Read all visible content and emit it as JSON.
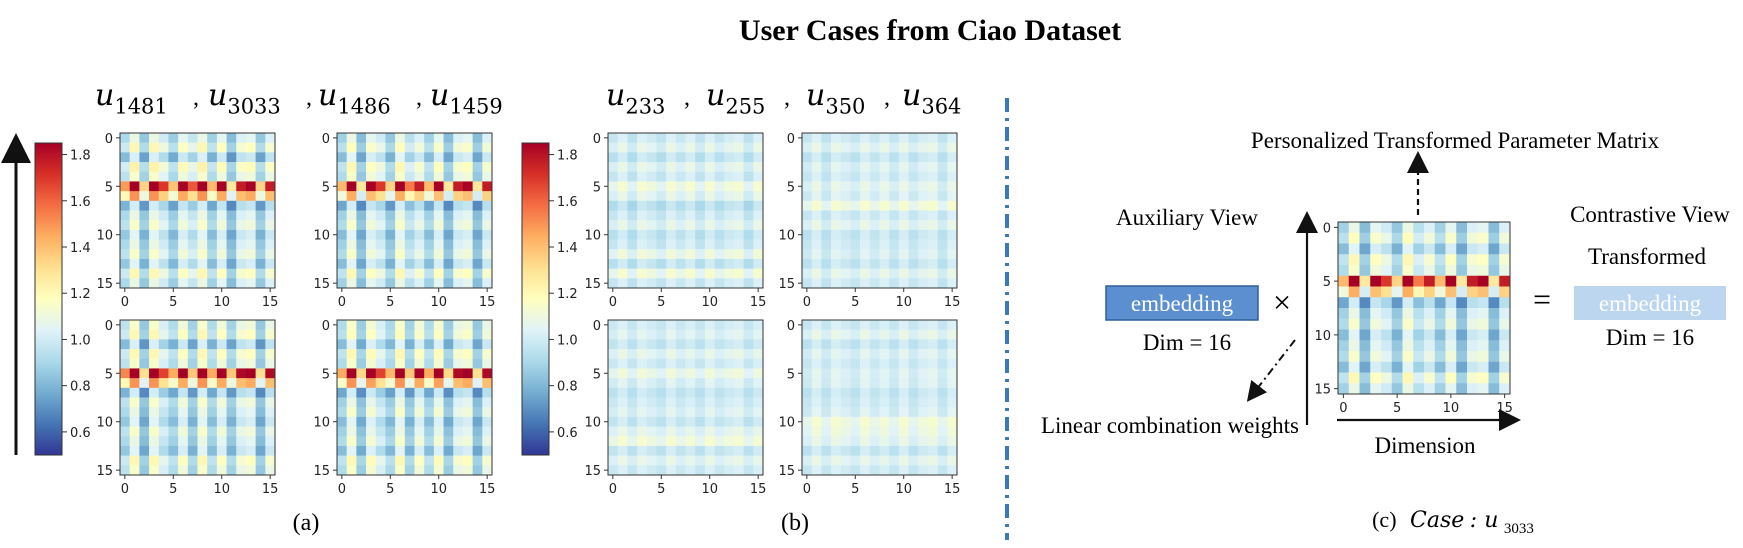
{
  "figure": {
    "title": "User Cases from Ciao Dataset",
    "panel_a": {
      "users": [
        "u_1481",
        "u_3033",
        "u_1486",
        "u_1459"
      ],
      "caption": "(a)"
    },
    "panel_b": {
      "users": [
        "u_233",
        "u_255",
        "u_350",
        "u_364"
      ],
      "caption": "(b)"
    },
    "panel_c": {
      "top_label": "Personalized Transformed Parameter Matrix",
      "auxiliary_view": "Auxiliary View",
      "embedding_left": "embedding",
      "dim_left": "Dim = 16",
      "times": "×",
      "equals": "=",
      "contrastive_view": "Contrastive View",
      "transformed": "Transformed",
      "embedding_right": "embedding",
      "dim_right": "Dim = 16",
      "linear_weights": "Linear combination weights",
      "dimension": "Dimension",
      "caption_prefix": "(c)",
      "caption_case": "Case",
      "caption_user": "u_3033"
    },
    "colors": {
      "embedding_strong": "#5b8fd0",
      "embedding_light": "#bcd6f0",
      "divider": "#3a78b8"
    },
    "colorbar_ticks": [
      "1.8",
      "1.6",
      "1.4",
      "1.2",
      "1.0",
      "0.8",
      "0.6"
    ]
  },
  "chart_data": [
    {
      "type": "heatmap",
      "panel": "a",
      "user": "u_1481",
      "rows": 16,
      "cols": 16,
      "x_ticks": [
        0,
        5,
        10,
        15
      ],
      "y_ticks": [
        0,
        5,
        10,
        15
      ],
      "color_range": [
        0.5,
        1.85
      ],
      "colormap": "RdYlBu_r",
      "row_profile": [
        1.0,
        1.1,
        0.92,
        1.12,
        1.05,
        1.7,
        1.35,
        0.9,
        1.0,
        1.05,
        0.95,
        1.0,
        1.05,
        0.95,
        1.1,
        1.0
      ],
      "col_profile": [
        0.85,
        1.15,
        0.75,
        1.15,
        1.0,
        0.78,
        1.1,
        0.95,
        1.15,
        0.8,
        1.1,
        0.7,
        1.05,
        1.1,
        0.75,
        1.05
      ]
    },
    {
      "type": "heatmap",
      "panel": "a",
      "user": "u_3033",
      "rows": 16,
      "cols": 16,
      "x_ticks": [
        0,
        5,
        10,
        15
      ],
      "y_ticks": [
        0,
        5,
        10,
        15
      ],
      "color_range": [
        0.5,
        1.85
      ],
      "colormap": "RdYlBu_r",
      "row_profile": [
        1.0,
        1.08,
        0.95,
        1.1,
        1.05,
        1.7,
        1.3,
        0.9,
        1.0,
        1.05,
        0.95,
        1.0,
        1.05,
        0.95,
        1.1,
        1.0
      ],
      "col_profile": [
        0.8,
        1.15,
        0.7,
        1.1,
        1.0,
        0.75,
        1.15,
        0.9,
        1.05,
        0.8,
        1.1,
        0.7,
        1.05,
        1.1,
        0.7,
        1.05
      ]
    },
    {
      "type": "heatmap",
      "panel": "a",
      "user": "u_1486",
      "rows": 16,
      "cols": 16,
      "x_ticks": [
        0,
        5,
        10,
        15
      ],
      "y_ticks": [
        0,
        5,
        10,
        15
      ],
      "color_range": [
        0.5,
        1.85
      ],
      "colormap": "RdYlBu_r",
      "row_profile": [
        1.05,
        1.1,
        0.92,
        1.1,
        1.05,
        1.75,
        1.35,
        0.9,
        1.05,
        1.0,
        0.95,
        1.05,
        1.0,
        0.95,
        1.1,
        1.05
      ],
      "col_profile": [
        0.85,
        1.15,
        0.7,
        1.15,
        0.95,
        0.8,
        1.1,
        0.75,
        1.15,
        0.8,
        1.1,
        0.75,
        1.05,
        1.1,
        0.7,
        1.05
      ]
    },
    {
      "type": "heatmap",
      "panel": "a",
      "user": "u_1459",
      "rows": 16,
      "cols": 16,
      "x_ticks": [
        0,
        5,
        10,
        15
      ],
      "y_ticks": [
        0,
        5,
        10,
        15
      ],
      "color_range": [
        0.5,
        1.85
      ],
      "colormap": "RdYlBu_r",
      "row_profile": [
        1.05,
        1.08,
        0.95,
        1.1,
        1.05,
        1.75,
        1.35,
        0.9,
        1.0,
        1.05,
        0.95,
        1.0,
        1.05,
        0.95,
        1.1,
        1.05
      ],
      "col_profile": [
        0.8,
        1.15,
        0.72,
        1.12,
        0.95,
        0.78,
        1.15,
        0.75,
        1.1,
        0.8,
        1.12,
        0.72,
        1.05,
        1.1,
        0.7,
        1.05
      ]
    },
    {
      "type": "heatmap",
      "panel": "b",
      "user": "u_233",
      "rows": 16,
      "cols": 16,
      "x_ticks": [
        0,
        5,
        10,
        15
      ],
      "y_ticks": [
        0,
        5,
        10,
        15
      ],
      "color_range": [
        0.5,
        1.85
      ],
      "colormap": "RdYlBu_r",
      "row_profile": [
        1.0,
        1.05,
        0.97,
        1.05,
        1.0,
        1.1,
        1.05,
        0.95,
        1.0,
        1.05,
        0.97,
        1.0,
        1.08,
        0.97,
        1.1,
        1.0
      ],
      "col_profile": [
        0.95,
        1.05,
        0.92,
        1.05,
        1.0,
        0.93,
        1.05,
        0.97,
        1.05,
        0.93,
        1.05,
        0.95,
        1.02,
        1.05,
        0.92,
        1.05
      ]
    },
    {
      "type": "heatmap",
      "panel": "b",
      "user": "u_255",
      "rows": 16,
      "cols": 16,
      "x_ticks": [
        0,
        5,
        10,
        15
      ],
      "y_ticks": [
        0,
        5,
        10,
        15
      ],
      "color_range": [
        0.5,
        1.85
      ],
      "colormap": "RdYlBu_r",
      "row_profile": [
        1.0,
        1.05,
        0.98,
        1.03,
        1.0,
        1.05,
        1.02,
        1.1,
        1.0,
        1.05,
        0.98,
        1.0,
        1.02,
        0.98,
        1.05,
        1.0
      ],
      "col_profile": [
        0.95,
        1.05,
        0.93,
        1.05,
        1.0,
        0.95,
        1.05,
        0.97,
        1.05,
        0.95,
        1.05,
        0.95,
        1.02,
        1.05,
        0.93,
        1.05
      ]
    },
    {
      "type": "heatmap",
      "panel": "b",
      "user": "u_350",
      "rows": 16,
      "cols": 16,
      "x_ticks": [
        0,
        5,
        10,
        15
      ],
      "y_ticks": [
        0,
        5,
        10,
        15
      ],
      "color_range": [
        0.5,
        1.85
      ],
      "colormap": "RdYlBu_r",
      "row_profile": [
        1.0,
        1.03,
        0.98,
        1.05,
        1.0,
        1.08,
        1.02,
        0.97,
        1.0,
        1.03,
        0.98,
        1.05,
        1.1,
        0.98,
        1.05,
        1.0
      ],
      "col_profile": [
        0.97,
        1.05,
        0.95,
        1.05,
        1.0,
        0.95,
        1.05,
        0.97,
        1.03,
        0.95,
        1.05,
        0.97,
        1.02,
        1.05,
        0.95,
        1.03
      ]
    },
    {
      "type": "heatmap",
      "panel": "b",
      "user": "u_364",
      "rows": 16,
      "cols": 16,
      "x_ticks": [
        0,
        5,
        10,
        15
      ],
      "y_ticks": [
        0,
        5,
        10,
        15
      ],
      "color_range": [
        0.5,
        1.85
      ],
      "colormap": "RdYlBu_r",
      "row_profile": [
        1.0,
        1.05,
        0.98,
        1.03,
        1.0,
        1.03,
        1.02,
        0.98,
        1.0,
        1.02,
        1.1,
        1.08,
        1.05,
        0.98,
        1.05,
        1.0
      ],
      "col_profile": [
        0.95,
        1.05,
        0.95,
        1.05,
        1.0,
        0.95,
        1.05,
        0.97,
        1.03,
        0.95,
        1.05,
        0.95,
        1.02,
        1.05,
        0.95,
        1.05
      ]
    },
    {
      "type": "heatmap",
      "panel": "c",
      "user": "u_3033",
      "rows": 16,
      "cols": 16,
      "x_ticks": [
        0,
        5,
        10,
        15
      ],
      "y_ticks": [
        0,
        5,
        10,
        15
      ],
      "color_range": [
        0.5,
        1.85
      ],
      "colormap": "RdYlBu_r",
      "row_profile": [
        1.0,
        1.08,
        0.95,
        1.1,
        1.05,
        1.7,
        1.3,
        0.9,
        1.0,
        1.05,
        0.95,
        1.0,
        1.05,
        0.95,
        1.1,
        1.0
      ],
      "col_profile": [
        0.8,
        1.15,
        0.7,
        1.1,
        1.0,
        0.75,
        1.15,
        0.9,
        1.05,
        0.8,
        1.1,
        0.7,
        1.05,
        1.1,
        0.7,
        1.05
      ]
    }
  ]
}
